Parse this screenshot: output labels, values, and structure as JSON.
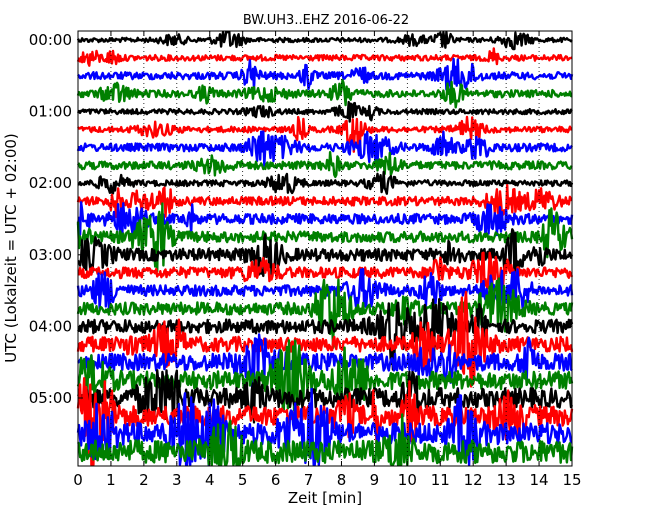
{
  "chart_data": {
    "type": "line",
    "title": "BW.UH3..EHZ 2016-06-22",
    "xlabel": "Zeit  [min]",
    "ylabel": "UTC (Lokalzeit = UTC + 02:00)",
    "xlim": [
      0,
      15
    ],
    "x_ticks": [
      "0",
      "1",
      "2",
      "3",
      "4",
      "5",
      "6",
      "7",
      "8",
      "9",
      "10",
      "11",
      "12",
      "13",
      "14",
      "15"
    ],
    "y_tick_labels": [
      "00:00",
      "01:00",
      "02:00",
      "03:00",
      "04:00",
      "05:00"
    ],
    "trace_interval_minutes": 15,
    "trace_count": 24,
    "grid": "vertical-dotted",
    "series_colors": [
      "#000000",
      "#ff0000",
      "#0000ff",
      "#008000"
    ],
    "trace_amplitude": [
      0.12,
      0.16,
      0.2,
      0.2,
      0.14,
      0.16,
      0.22,
      0.22,
      0.16,
      0.24,
      0.28,
      0.3,
      0.34,
      0.3,
      0.3,
      0.34,
      0.38,
      0.42,
      0.48,
      0.5,
      0.54,
      0.56,
      0.6,
      0.64
    ]
  }
}
